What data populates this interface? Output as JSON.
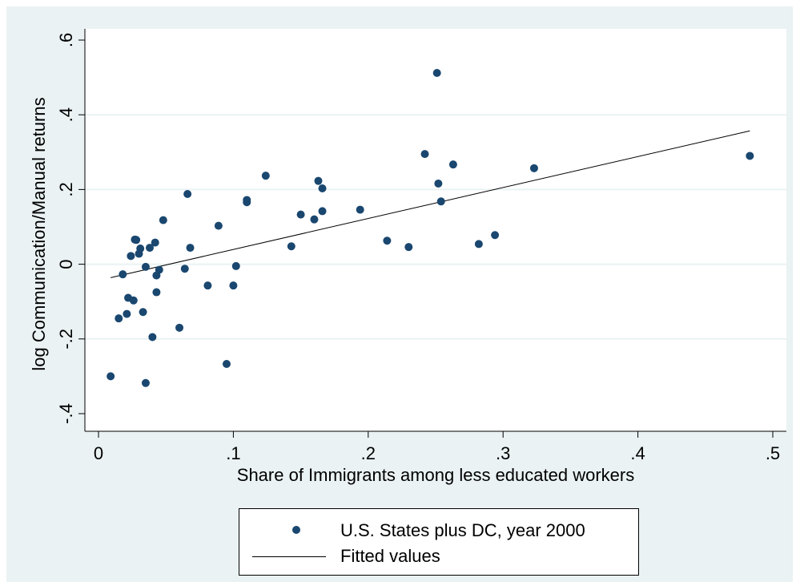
{
  "chart_data": {
    "type": "scatter",
    "title": "",
    "xlabel": "Share of Immigrants among less educated workers",
    "ylabel": "log Communication/Manual returns",
    "xlim": [
      0,
      0.5
    ],
    "ylim": [
      -0.4,
      0.6
    ],
    "x_ticks": [
      "0",
      ".1",
      ".2",
      ".3",
      ".4",
      ".5"
    ],
    "y_ticks": [
      "-.4",
      "-.2",
      "0",
      ".2",
      ".4",
      ".6"
    ],
    "x_tick_values": [
      0,
      0.1,
      0.2,
      0.3,
      0.4,
      0.5
    ],
    "y_tick_values": [
      -0.4,
      -0.2,
      0,
      0.2,
      0.4,
      0.6
    ],
    "grid": "horizontal",
    "legend_position": "bottom",
    "series": [
      {
        "name": "U.S. States plus DC, year 2000",
        "kind": "scatter",
        "color": "#1a476f",
        "points": [
          [
            0.009,
            -0.3
          ],
          [
            0.015,
            -0.145
          ],
          [
            0.018,
            -0.027
          ],
          [
            0.021,
            -0.133
          ],
          [
            0.022,
            -0.09
          ],
          [
            0.024,
            0.022
          ],
          [
            0.026,
            -0.097
          ],
          [
            0.027,
            0.066
          ],
          [
            0.028,
            0.065
          ],
          [
            0.03,
            0.028
          ],
          [
            0.031,
            0.042
          ],
          [
            0.033,
            -0.128
          ],
          [
            0.035,
            -0.007
          ],
          [
            0.035,
            -0.318
          ],
          [
            0.038,
            0.044
          ],
          [
            0.04,
            -0.195
          ],
          [
            0.042,
            0.058
          ],
          [
            0.043,
            -0.075
          ],
          [
            0.043,
            -0.03
          ],
          [
            0.045,
            -0.015
          ],
          [
            0.048,
            0.118
          ],
          [
            0.06,
            -0.17
          ],
          [
            0.064,
            -0.012
          ],
          [
            0.066,
            0.188
          ],
          [
            0.068,
            0.044
          ],
          [
            0.081,
            -0.057
          ],
          [
            0.089,
            0.103
          ],
          [
            0.095,
            -0.267
          ],
          [
            0.1,
            -0.057
          ],
          [
            0.102,
            -0.005
          ],
          [
            0.11,
            0.172
          ],
          [
            0.11,
            0.166
          ],
          [
            0.124,
            0.237
          ],
          [
            0.143,
            0.048
          ],
          [
            0.15,
            0.133
          ],
          [
            0.16,
            0.12
          ],
          [
            0.163,
            0.223
          ],
          [
            0.166,
            0.142
          ],
          [
            0.166,
            0.203
          ],
          [
            0.194,
            0.146
          ],
          [
            0.214,
            0.063
          ],
          [
            0.23,
            0.046
          ],
          [
            0.242,
            0.295
          ],
          [
            0.251,
            0.512
          ],
          [
            0.252,
            0.216
          ],
          [
            0.254,
            0.168
          ],
          [
            0.263,
            0.267
          ],
          [
            0.282,
            0.054
          ],
          [
            0.294,
            0.078
          ],
          [
            0.323,
            0.257
          ],
          [
            0.483,
            0.29
          ]
        ]
      },
      {
        "name": "Fitted values",
        "kind": "line",
        "color": "#000000",
        "points": [
          [
            0.009,
            -0.036
          ],
          [
            0.483,
            0.357
          ]
        ]
      }
    ]
  }
}
